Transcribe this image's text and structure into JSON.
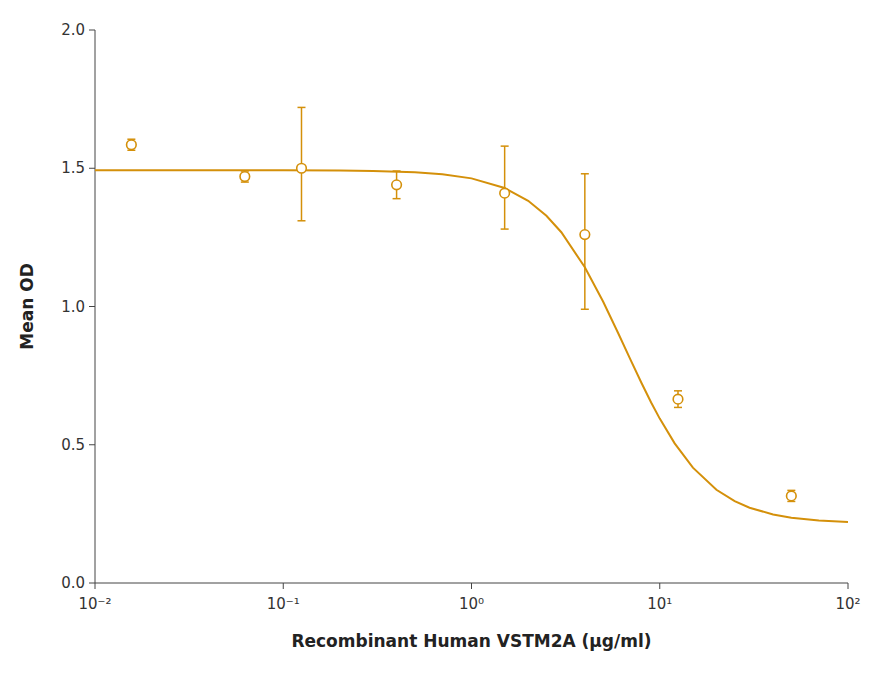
{
  "chart_data": {
    "type": "scatter",
    "log": "x",
    "xlabel": "Recombinant Human VSTM2A (μg/ml)",
    "ylabel": "Mean OD",
    "xlim": [
      0.01,
      100
    ],
    "xticks": [
      {
        "value": 0.01,
        "label": "10⁻²"
      },
      {
        "value": 0.1,
        "label": "10⁻¹"
      },
      {
        "value": 1,
        "label": "10⁰"
      },
      {
        "value": 10,
        "label": "10¹"
      },
      {
        "value": 100,
        "label": "10²"
      }
    ],
    "ylim": [
      0.0,
      2.0
    ],
    "yticks": [
      {
        "value": 0.0,
        "label": "0.0"
      },
      0.5,
      {
        "value": 1.0,
        "label": "1.0"
      },
      1.5,
      {
        "value": 2.0,
        "label": "2.0"
      }
    ],
    "series": [
      {
        "type": "line",
        "color": "#D4900A",
        "line_style": "solid",
        "x": [
          0.01,
          0.03,
          0.1,
          0.2,
          0.3,
          0.5,
          0.7,
          1,
          1.5,
          2,
          2.5,
          3,
          4,
          5,
          6,
          7,
          8,
          9,
          10,
          12,
          15,
          20,
          25,
          30,
          40,
          50,
          70,
          100
        ],
        "values": [
          1.493,
          1.49297,
          1.4927,
          1.49179,
          1.49028,
          1.48548,
          1.47835,
          1.46345,
          1.42838,
          1.38247,
          1.32831,
          1.26857,
          1.14196,
          1.01791,
          0.90504,
          0.80673,
          0.72319,
          0.6531,
          0.59458,
          0.50491,
          0.41704,
          0.33709,
          0.29592,
          0.2723,
          0.24788,
          0.23624,
          0.22593,
          0.22038
        ]
      },
      {
        "type": "scatter",
        "color": "#D4900A",
        "marker": "circle",
        "x": [
          0.0156,
          0.0625,
          0.125,
          0.4,
          1.5,
          4.0,
          12.5,
          50.0
        ],
        "values": [
          1.585,
          1.47,
          1.5,
          1.44,
          1.41,
          1.26,
          0.665,
          0.315
        ],
        "error_upper": [
          0.02,
          0.02,
          0.22,
          0.05,
          0.17,
          0.22,
          0.03,
          0.02
        ],
        "error_lower": [
          0.02,
          0.02,
          0.19,
          0.05,
          0.13,
          0.27,
          0.03,
          0.02
        ]
      }
    ]
  }
}
